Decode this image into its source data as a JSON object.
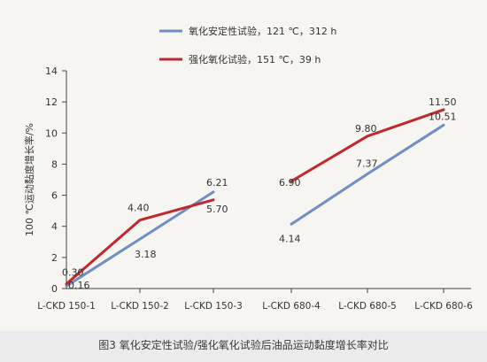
{
  "caption": "图3  氧化安定性试验/强化氧化试验后油品运动黏度增长率对比",
  "chart_data": {
    "type": "line",
    "title": "",
    "xlabel": "",
    "ylabel": "100 ℃运动黏度增长率/%",
    "ylim": [
      0,
      14
    ],
    "yticks": [
      0,
      2,
      4,
      6,
      8,
      10,
      12,
      14
    ],
    "grid": false,
    "legend_position": "top-center",
    "categories": [
      "L-CKD 150-1",
      "L-CKD 150-2",
      "L-CKD 150-3",
      "L-CKD 680-4",
      "L-CKD 680-5",
      "L-CKD 680-6"
    ],
    "series": [
      {
        "name": "氧化安定性试验，121 ℃，312 h",
        "color": "#6f8fc4",
        "values": [
          0.16,
          3.18,
          6.21,
          4.14,
          7.37,
          10.51
        ],
        "labels": [
          "0.16",
          "3.18",
          "6.21",
          "4.14",
          "7.37",
          "10.51"
        ]
      },
      {
        "name": "强化氧化试验，151 ℃，39 h",
        "color": "#c1272d",
        "values": [
          0.3,
          4.4,
          5.7,
          6.9,
          9.8,
          11.5
        ],
        "labels": [
          "0.30",
          "4.40",
          "5.70",
          "6.90",
          "9.80",
          "11.50"
        ]
      }
    ],
    "segments": [
      [
        0,
        1,
        2
      ],
      [
        3,
        4,
        5
      ]
    ]
  }
}
